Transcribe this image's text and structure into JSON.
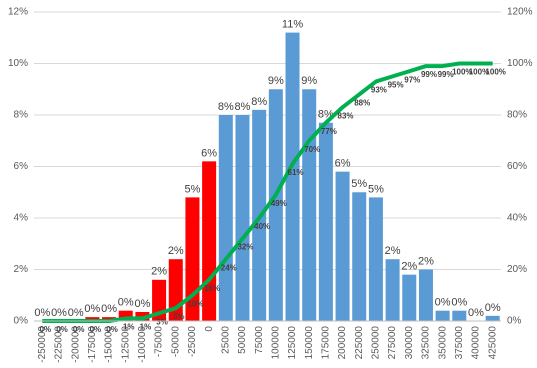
{
  "chart_data": {
    "type": "bar",
    "categories": [
      "-250000",
      "-225000",
      "-200000",
      "-175000",
      "-150000",
      "-125000",
      "-100000",
      "-75000",
      "-50000",
      "-25000",
      "0",
      "25000",
      "50000",
      "75000",
      "100000",
      "125000",
      "150000",
      "175000",
      "200000",
      "225000",
      "250000",
      "275000",
      "300000",
      "325000",
      "350000",
      "375000",
      "400000",
      "425000"
    ],
    "series": [
      {
        "type": "bar",
        "colors": [
          "#ff0000",
          "#ff0000",
          "#ff0000",
          "#ff0000",
          "#ff0000",
          "#ff0000",
          "#ff0000",
          "#ff0000",
          "#ff0000",
          "#ff0000",
          "#ff0000",
          "#5b9bd5",
          "#5b9bd5",
          "#5b9bd5",
          "#5b9bd5",
          "#5b9bd5",
          "#5b9bd5",
          "#5b9bd5",
          "#5b9bd5",
          "#5b9bd5",
          "#5b9bd5",
          "#5b9bd5",
          "#5b9bd5",
          "#5b9bd5",
          "#5b9bd5",
          "#5b9bd5",
          "#5b9bd5",
          "#5b9bd5"
        ],
        "values": [
          0,
          0,
          0,
          0.15,
          0.15,
          0.4,
          0.35,
          1.6,
          2.4,
          4.8,
          6.2,
          8.0,
          8.0,
          8.2,
          9.0,
          11.2,
          9.0,
          7.7,
          5.8,
          5.0,
          4.8,
          2.4,
          1.8,
          2.0,
          0.4,
          0.4,
          0,
          0.2
        ],
        "value_labels": [
          "0%",
          "0%",
          "0%",
          "0%",
          "0%",
          "0%",
          "0%",
          "2%",
          "2%",
          "5%",
          "6%",
          "8%",
          "8%",
          "8%",
          "9%",
          "11%",
          "9%",
          "8%",
          "6%",
          "5%",
          "5%",
          "2%",
          "2%",
          "2%",
          "0%",
          "0%",
          "0%",
          "0%"
        ]
      },
      {
        "type": "line",
        "axis": "y2",
        "color": "#00b050",
        "values": [
          0,
          0,
          0,
          0,
          0,
          1,
          1,
          3,
          5,
          10,
          16,
          24,
          32,
          40,
          49,
          61,
          70,
          77,
          83,
          88,
          93,
          95,
          97,
          99,
          99,
          100,
          100,
          100
        ],
        "value_labels": [
          "0%",
          "0%",
          "0%",
          "0%",
          "0%",
          "1%",
          "1%",
          "3%",
          "5%",
          "10%",
          "16%",
          "24%",
          "32%",
          "40%",
          "49%",
          "61%",
          "70%",
          "77%",
          "83%",
          "88%",
          "93%",
          "95%",
          "97%",
          "99%",
          "99%",
          "100%",
          "100%",
          "100%"
        ]
      }
    ],
    "ylim": [
      0,
      12
    ],
    "yticks": [
      {
        "value": 0,
        "label": "0%"
      },
      {
        "value": 2,
        "label": "2%"
      },
      {
        "value": 4,
        "label": "4%"
      },
      {
        "value": 6,
        "label": "6%"
      },
      {
        "value": 8,
        "label": "8%"
      },
      {
        "value": 10,
        "label": "10%"
      },
      {
        "value": 12,
        "label": "12%"
      }
    ],
    "y2lim": [
      0,
      120
    ],
    "y2ticks": [
      {
        "value": 0,
        "label": "0%"
      },
      {
        "value": 20,
        "label": "20%"
      },
      {
        "value": 40,
        "label": "40%"
      },
      {
        "value": 60,
        "label": "60%"
      },
      {
        "value": 80,
        "label": "80%"
      },
      {
        "value": 100,
        "label": "100%"
      },
      {
        "value": 120,
        "label": "120%"
      }
    ],
    "grid": true
  }
}
